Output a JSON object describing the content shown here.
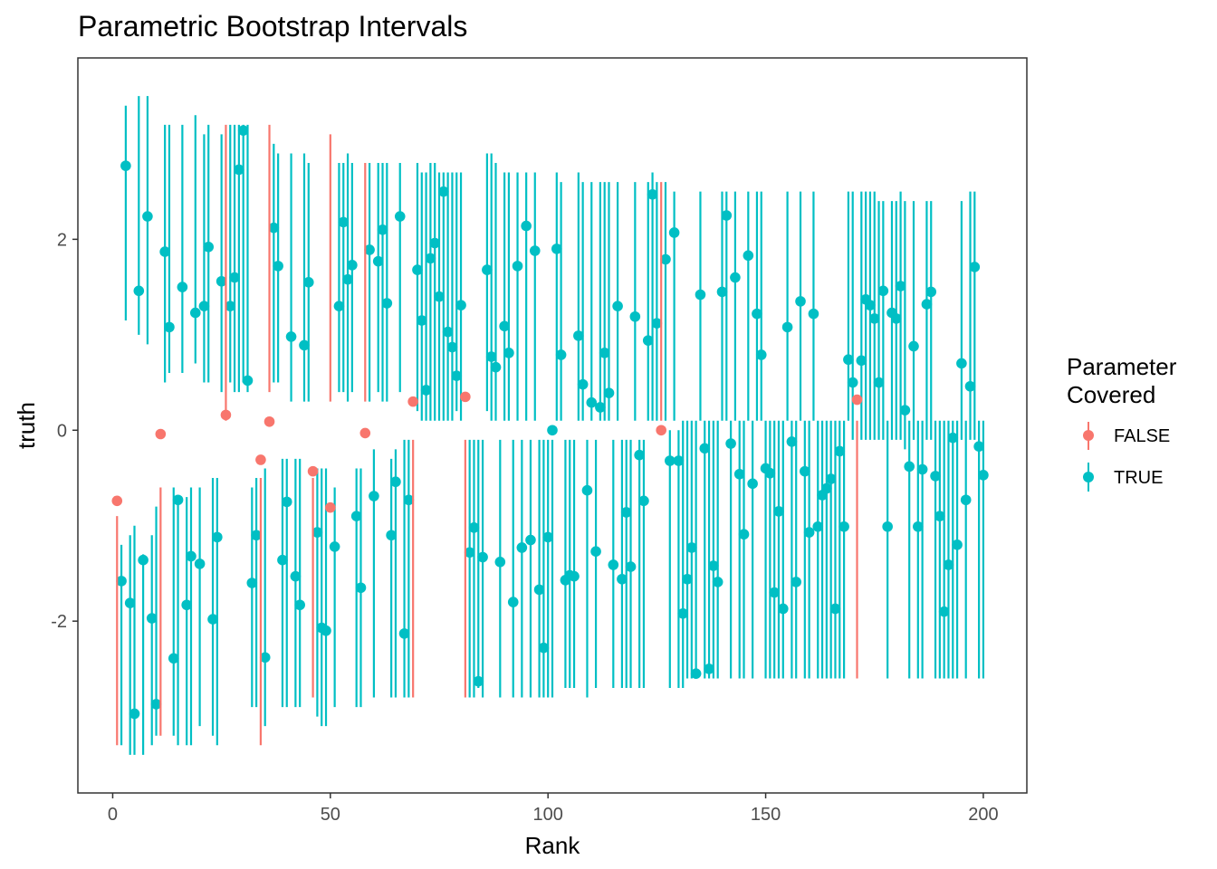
{
  "chart_data": {
    "type": "scatter",
    "title": "Parametric Bootstrap Intervals",
    "xlabel": "Rank",
    "ylabel": "truth",
    "xlim": [
      -8,
      210
    ],
    "ylim": [
      -3.8,
      3.9
    ],
    "x_ticks": [
      0,
      50,
      100,
      150,
      200
    ],
    "y_ticks": [
      -2,
      0,
      2
    ],
    "x_tick_labels": [
      "0",
      "50",
      "100",
      "150",
      "200"
    ],
    "y_tick_labels": [
      "-2",
      "0",
      "2"
    ],
    "grid": false,
    "legend": {
      "title": [
        "Parameter",
        "Covered"
      ],
      "placement": "right",
      "entries": [
        {
          "label": "FALSE",
          "color": "#F8766D"
        },
        {
          "label": "TRUE",
          "color": "#00BFC4"
        }
      ]
    },
    "colors": {
      "FALSE": "#F8766D",
      "TRUE": "#00BFC4"
    },
    "series": [
      {
        "name": "FALSE",
        "points": [
          [
            1,
            -0.74,
            -3.3,
            -0.9
          ],
          [
            11,
            -0.04,
            -3.2,
            -0.6
          ],
          [
            26,
            0.16,
            0.1,
            3.2
          ],
          [
            34,
            -0.31,
            -3.3,
            -0.5
          ],
          [
            36,
            0.09,
            0.4,
            3.2
          ],
          [
            46,
            -0.43,
            -2.8,
            -0.5
          ],
          [
            50,
            -0.81,
            0.3,
            3.1
          ],
          [
            58,
            -0.03,
            0.3,
            2.8
          ],
          [
            69,
            0.3,
            -2.8,
            -0.1
          ],
          [
            81,
            0.35,
            -2.8,
            -0.1
          ],
          [
            126,
            0,
            0.1,
            2.6
          ],
          [
            171,
            0.32,
            -2.6,
            0.1
          ]
        ]
      },
      {
        "name": "TRUE",
        "points": [
          [
            2,
            -1.58,
            -3.3,
            -1.2
          ],
          [
            3,
            2.77,
            1.15,
            3.4
          ],
          [
            4,
            -1.81,
            -3.4,
            -1.1
          ],
          [
            5,
            -2.97,
            -3.4,
            -1.0
          ],
          [
            6,
            1.46,
            1.0,
            3.5
          ],
          [
            7,
            -1.36,
            -3.4,
            -1.3
          ],
          [
            8,
            2.24,
            0.9,
            3.5
          ],
          [
            9,
            -1.97,
            -3.3,
            -1.1
          ],
          [
            10,
            -2.87,
            -3.2,
            -0.8
          ],
          [
            12,
            1.87,
            0.5,
            3.2
          ],
          [
            13,
            1.08,
            0.6,
            3.2
          ],
          [
            14,
            -2.39,
            -3.2,
            -0.6
          ],
          [
            15,
            -0.73,
            -3.3,
            -0.7
          ],
          [
            16,
            1.5,
            0.6,
            3.2
          ],
          [
            17,
            -1.83,
            -3.3,
            -0.7
          ],
          [
            18,
            -1.32,
            -3.3,
            -0.6
          ],
          [
            19,
            1.23,
            0.7,
            3.3
          ],
          [
            20,
            -1.4,
            -3.1,
            -0.6
          ],
          [
            21,
            1.3,
            0.5,
            3.1
          ],
          [
            22,
            1.92,
            0.5,
            3.2
          ],
          [
            23,
            -1.98,
            -3.2,
            -0.5
          ],
          [
            24,
            -1.12,
            -3.3,
            -0.5
          ],
          [
            25,
            1.56,
            0.4,
            3.1
          ],
          [
            27,
            1.3,
            0.5,
            3.2
          ],
          [
            28,
            1.6,
            0.4,
            3.2
          ],
          [
            29,
            2.73,
            0.4,
            3.2
          ],
          [
            30,
            3.14,
            0.5,
            3.2
          ],
          [
            31,
            0.52,
            0.4,
            3.2
          ],
          [
            32,
            -1.6,
            -2.9,
            -0.6
          ],
          [
            33,
            -1.1,
            -2.9,
            -0.5
          ],
          [
            35,
            -2.38,
            -3.1,
            -0.4
          ],
          [
            37,
            2.12,
            0.5,
            3.0
          ],
          [
            38,
            1.72,
            0.5,
            2.9
          ],
          [
            39,
            -1.36,
            -2.9,
            -0.3
          ],
          [
            40,
            -0.75,
            -2.9,
            -0.3
          ],
          [
            41,
            0.98,
            0.3,
            2.9
          ],
          [
            42,
            -1.53,
            -2.9,
            -0.3
          ],
          [
            43,
            -1.83,
            -2.9,
            -0.3
          ],
          [
            44,
            0.89,
            0.3,
            2.9
          ],
          [
            45,
            1.55,
            0.3,
            2.8
          ],
          [
            47,
            -1.07,
            -3.0,
            -0.4
          ],
          [
            48,
            -2.07,
            -3.1,
            -0.4
          ],
          [
            49,
            -2.1,
            -3.1,
            -0.4
          ],
          [
            51,
            -1.22,
            -2.9,
            -0.6
          ],
          [
            52,
            1.3,
            0.4,
            2.8
          ],
          [
            53,
            2.18,
            0.4,
            2.8
          ],
          [
            54,
            1.58,
            0.3,
            2.9
          ],
          [
            55,
            1.73,
            0.4,
            2.8
          ],
          [
            56,
            -0.9,
            -2.9,
            -0.4
          ],
          [
            57,
            -1.65,
            -2.9,
            -0.4
          ],
          [
            59,
            1.89,
            0.3,
            2.8
          ],
          [
            60,
            -0.69,
            -2.8,
            -0.2
          ],
          [
            61,
            1.77,
            0.4,
            2.8
          ],
          [
            62,
            2.1,
            0.3,
            2.8
          ],
          [
            63,
            1.33,
            0.3,
            2.8
          ],
          [
            64,
            -1.1,
            -2.8,
            -0.3
          ],
          [
            65,
            -0.54,
            -2.8,
            -0.2
          ],
          [
            66,
            2.24,
            0.4,
            2.8
          ],
          [
            67,
            -2.13,
            -2.8,
            -0.1
          ],
          [
            68,
            -0.73,
            -2.8,
            -0.1
          ],
          [
            70,
            1.68,
            0.2,
            2.8
          ],
          [
            71,
            1.15,
            0.1,
            2.7
          ],
          [
            72,
            0.42,
            0.1,
            2.7
          ],
          [
            73,
            1.8,
            0.1,
            2.8
          ],
          [
            74,
            1.96,
            0.1,
            2.8
          ],
          [
            75,
            1.4,
            0.1,
            2.7
          ],
          [
            76,
            2.5,
            0.1,
            2.7
          ],
          [
            77,
            1.03,
            0.1,
            2.7
          ],
          [
            78,
            0.87,
            0.1,
            2.7
          ],
          [
            79,
            0.57,
            0.2,
            2.7
          ],
          [
            80,
            1.31,
            0.1,
            2.7
          ],
          [
            82,
            -1.28,
            -2.8,
            -0.1
          ],
          [
            83,
            -1.02,
            -2.8,
            -0.1
          ],
          [
            84,
            -2.63,
            -2.7,
            -0.1
          ],
          [
            85,
            -1.33,
            -2.8,
            -0.1
          ],
          [
            86,
            1.68,
            0.2,
            2.9
          ],
          [
            87,
            0.77,
            0.1,
            2.9
          ],
          [
            88,
            0.66,
            0.1,
            2.8
          ],
          [
            89,
            -1.38,
            -2.8,
            -0.1
          ],
          [
            90,
            1.09,
            0.1,
            2.7
          ],
          [
            91,
            0.81,
            0.1,
            2.7
          ],
          [
            92,
            -1.8,
            -2.8,
            -0.1
          ],
          [
            93,
            1.72,
            0.1,
            2.7
          ],
          [
            94,
            -1.23,
            -2.8,
            -0.1
          ],
          [
            95,
            2.14,
            0.1,
            2.7
          ],
          [
            96,
            -1.15,
            -2.8,
            -0.1
          ],
          [
            97,
            1.88,
            0.1,
            2.7
          ],
          [
            98,
            -1.67,
            -2.8,
            -0.1
          ],
          [
            99,
            -2.28,
            -2.8,
            -0.1
          ],
          [
            100,
            -1.12,
            -2.8,
            -0.1
          ],
          [
            101,
            0.0,
            -2.8,
            -0.1
          ],
          [
            102,
            1.9,
            0.1,
            2.7
          ],
          [
            103,
            0.79,
            0.1,
            2.6
          ],
          [
            104,
            -1.57,
            -2.7,
            -0.1
          ],
          [
            105,
            -1.52,
            -2.7,
            -0.1
          ],
          [
            106,
            -1.53,
            -2.7,
            -0.1
          ],
          [
            107,
            0.99,
            0.1,
            2.7
          ],
          [
            108,
            0.48,
            0.1,
            2.6
          ],
          [
            109,
            -0.63,
            -2.8,
            -0.1
          ],
          [
            110,
            0.29,
            0.1,
            2.6
          ],
          [
            111,
            -1.27,
            -2.7,
            -0.1
          ],
          [
            112,
            0.24,
            0.1,
            2.6
          ],
          [
            113,
            0.81,
            0.1,
            2.6
          ],
          [
            114,
            0.39,
            0.1,
            2.6
          ],
          [
            115,
            -1.41,
            -2.7,
            -0.1
          ],
          [
            116,
            1.3,
            0.1,
            2.6
          ],
          [
            117,
            -1.56,
            -2.7,
            -0.1
          ],
          [
            118,
            -0.86,
            -2.7,
            -0.1
          ],
          [
            119,
            -1.43,
            -2.7,
            -0.1
          ],
          [
            120,
            1.19,
            0.1,
            2.6
          ],
          [
            121,
            -0.26,
            -2.7,
            -0.1
          ],
          [
            122,
            -0.74,
            -2.7,
            -0.1
          ],
          [
            123,
            0.94,
            0.1,
            2.6
          ],
          [
            124,
            2.47,
            0.1,
            2.7
          ],
          [
            125,
            1.12,
            0.1,
            2.6
          ],
          [
            127,
            1.79,
            0.1,
            2.6
          ],
          [
            128,
            -0.32,
            -2.7,
            0.0
          ],
          [
            129,
            2.07,
            0.1,
            2.5
          ],
          [
            130,
            -0.32,
            -2.7,
            0.0
          ],
          [
            131,
            -1.92,
            -2.7,
            0.1
          ],
          [
            132,
            -1.56,
            -2.6,
            0.1
          ],
          [
            133,
            -1.23,
            -2.6,
            0.1
          ],
          [
            134,
            -2.55,
            -2.6,
            0.1
          ],
          [
            135,
            1.42,
            0.1,
            2.5
          ],
          [
            136,
            -0.19,
            -2.6,
            0.1
          ],
          [
            137,
            -2.5,
            -2.6,
            0.1
          ],
          [
            138,
            -1.42,
            -2.6,
            0.1
          ],
          [
            139,
            -1.59,
            -2.6,
            0.1
          ],
          [
            140,
            1.45,
            0.1,
            2.5
          ],
          [
            141,
            2.25,
            0.1,
            2.5
          ],
          [
            142,
            -0.14,
            -2.6,
            0.1
          ],
          [
            143,
            1.6,
            0.1,
            2.5
          ],
          [
            144,
            -0.46,
            -2.6,
            0.1
          ],
          [
            145,
            -1.09,
            -2.6,
            0.1
          ],
          [
            146,
            1.83,
            0.1,
            2.5
          ],
          [
            147,
            -0.56,
            -2.6,
            0.1
          ],
          [
            148,
            1.22,
            0.1,
            2.5
          ],
          [
            149,
            0.79,
            0.1,
            2.5
          ],
          [
            150,
            -0.4,
            -2.6,
            0.1
          ],
          [
            151,
            -0.45,
            -2.6,
            0.1
          ],
          [
            152,
            -1.7,
            -2.6,
            0.1
          ],
          [
            153,
            -0.85,
            -2.6,
            0.1
          ],
          [
            154,
            -1.87,
            -2.6,
            0.1
          ],
          [
            155,
            1.08,
            0.1,
            2.5
          ],
          [
            156,
            -0.12,
            -2.6,
            0.1
          ],
          [
            157,
            -1.59,
            -2.6,
            0.1
          ],
          [
            158,
            1.35,
            0.1,
            2.5
          ],
          [
            159,
            -0.43,
            -2.6,
            0.1
          ],
          [
            160,
            -1.07,
            -2.6,
            0.1
          ],
          [
            161,
            1.22,
            0.1,
            2.5
          ],
          [
            162,
            -1.01,
            -2.6,
            0.1
          ],
          [
            163,
            -0.68,
            -2.6,
            0.1
          ],
          [
            164,
            -0.61,
            -2.6,
            0.1
          ],
          [
            165,
            -0.51,
            -2.6,
            0.1
          ],
          [
            166,
            -1.87,
            -2.6,
            0.1
          ],
          [
            167,
            -0.22,
            -2.6,
            0.1
          ],
          [
            168,
            -1.01,
            -2.6,
            0.1
          ],
          [
            169,
            0.74,
            0.1,
            2.5
          ],
          [
            170,
            0.5,
            -0.1,
            2.5
          ],
          [
            172,
            0.73,
            -0.1,
            2.5
          ],
          [
            173,
            1.37,
            -0.1,
            2.5
          ],
          [
            174,
            1.31,
            -0.1,
            2.5
          ],
          [
            175,
            1.17,
            -0.1,
            2.5
          ],
          [
            176,
            0.5,
            -0.1,
            2.4
          ],
          [
            177,
            1.46,
            -0.1,
            2.4
          ],
          [
            178,
            -1.01,
            -2.6,
            0.1
          ],
          [
            179,
            1.23,
            -0.1,
            2.4
          ],
          [
            180,
            1.17,
            -0.1,
            2.4
          ],
          [
            181,
            1.51,
            -0.1,
            2.5
          ],
          [
            182,
            0.21,
            -0.2,
            2.4
          ],
          [
            183,
            -0.38,
            -2.6,
            0.1
          ],
          [
            184,
            0.88,
            -0.1,
            2.4
          ],
          [
            185,
            -1.01,
            -2.6,
            0.1
          ],
          [
            186,
            -0.41,
            -2.6,
            0.1
          ],
          [
            187,
            1.32,
            -0.1,
            2.4
          ],
          [
            188,
            1.45,
            -0.1,
            2.4
          ],
          [
            189,
            -0.48,
            -2.6,
            0.1
          ],
          [
            190,
            -0.9,
            -2.6,
            0.1
          ],
          [
            191,
            -1.9,
            -2.6,
            0.1
          ],
          [
            192,
            -1.41,
            -2.6,
            0.1
          ],
          [
            193,
            -0.08,
            -2.6,
            0.1
          ],
          [
            194,
            -1.2,
            -2.6,
            0.1
          ],
          [
            195,
            0.7,
            -0.1,
            2.4
          ],
          [
            196,
            -0.73,
            -2.6,
            0.1
          ],
          [
            197,
            0.46,
            -0.1,
            2.5
          ],
          [
            198,
            1.71,
            -0.1,
            2.5
          ],
          [
            199,
            -0.17,
            -2.6,
            0.1
          ],
          [
            200,
            -0.47,
            -2.6,
            0.1
          ]
        ]
      }
    ]
  }
}
